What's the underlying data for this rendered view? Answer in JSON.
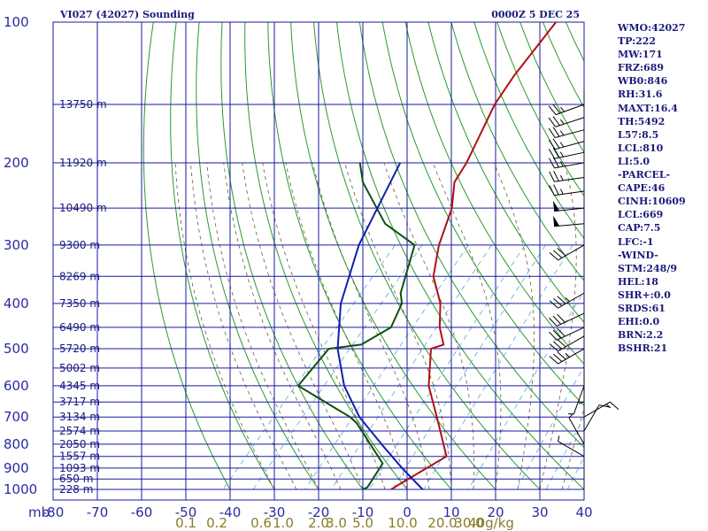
{
  "header": {
    "title": "VI027 (42027) Sounding",
    "valid_time": "0000Z  5 DEC 25"
  },
  "indices": [
    "WMO:42027",
    "TP:222",
    "MW:171",
    "FRZ:689",
    "WB0:846",
    "RH:31.6",
    "MAXT:16.4",
    "TH:5492",
    "L57:8.5",
    "LCL:810",
    "LI:5.0",
    "-PARCEL-",
    "CAPE:46",
    "CINH:10609",
    "LCL:669",
    "CAP:7.5",
    "LFC:-1",
    "-WIND-",
    "STM:248/9",
    "HEL:18",
    "SHR+:0.0",
    "SRDS:61",
    "EHI:0.0",
    "BRN:2.2",
    "BSHR:21"
  ],
  "colors": {
    "grid": "#1a1aa0",
    "dry_adiabat": "#2a9a2a",
    "moist_adiabat": "#6a5a3a",
    "mixing_ratio": "#5aa8d8",
    "temperature": "#b01010",
    "dewpoint": "#105010",
    "parcel": "#1020b0",
    "pressure_text": "#2a2aa0",
    "height_text": "#1a1a7a",
    "mix_text": "#8a7a2a",
    "wind": "#000000"
  },
  "chart_data": {
    "type": "line",
    "diagram": "skew-T log-P",
    "xlabel": "",
    "ylabel": "",
    "corner_label": "mb",
    "temperature_ticks": [
      -80,
      -70,
      -60,
      -50,
      -40,
      -30,
      -20,
      -10,
      0,
      10,
      20,
      30,
      40
    ],
    "temperature_tick_labels": [
      "-80",
      "-70",
      "-60",
      "-50",
      "-40",
      "-30",
      "-20",
      "-10",
      "0",
      "10",
      "20",
      "30",
      "40"
    ],
    "xlim_at_1000mb": [
      -80,
      40
    ],
    "pressure_ticks": [
      100,
      200,
      300,
      400,
      500,
      600,
      700,
      800,
      900,
      1000
    ],
    "ylim_mb": [
      1000,
      100
    ],
    "y_scale": "log",
    "height_labels": [
      {
        "p": 150,
        "text": "13750 m"
      },
      {
        "p": 200,
        "text": "11920 m"
      },
      {
        "p": 250,
        "text": "10490 m"
      },
      {
        "p": 300,
        "text": "9300 m"
      },
      {
        "p": 350,
        "text": "8269 m"
      },
      {
        "p": 400,
        "text": "7350 m"
      },
      {
        "p": 450,
        "text": "6490 m"
      },
      {
        "p": 500,
        "text": "5720 m"
      },
      {
        "p": 550,
        "text": "5002 m"
      },
      {
        "p": 600,
        "text": "4345 m"
      },
      {
        "p": 650,
        "text": "3717 m"
      },
      {
        "p": 700,
        "text": "3134 m"
      },
      {
        "p": 750,
        "text": "2574 m"
      },
      {
        "p": 800,
        "text": "2050 m"
      },
      {
        "p": 850,
        "text": "1557 m"
      },
      {
        "p": 900,
        "text": "1093 m"
      },
      {
        "p": 950,
        "text": "650 m"
      },
      {
        "p": 1000,
        "text": "228 m"
      }
    ],
    "mixing_ratio_labels": [
      {
        "text": "0.1",
        "t": -50
      },
      {
        "text": "0.2",
        "t": -43
      },
      {
        "text": "0.6",
        "t": -33
      },
      {
        "text": "1.0",
        "t": -28
      },
      {
        "text": "2.0",
        "t": -20
      },
      {
        "text": "3.0",
        "t": -16
      },
      {
        "text": "5.0",
        "t": -10
      },
      {
        "text": "10.0",
        "t": -1
      },
      {
        "text": "20.0",
        "t": 8
      },
      {
        "text": "30.0",
        "t": 14
      },
      {
        "text": "40g/kg",
        "t": 19
      }
    ],
    "series": [
      {
        "key": "temperature",
        "points": [
          [
            1000,
            -3.6
          ],
          [
            970,
            -2.6
          ],
          [
            850,
            2.2
          ],
          [
            800,
            -1.0
          ],
          [
            700,
            -8.0
          ],
          [
            600,
            -16.2
          ],
          [
            500,
            -23.2
          ],
          [
            490,
            -21.2
          ],
          [
            450,
            -25.6
          ],
          [
            400,
            -30.3
          ],
          [
            350,
            -37.4
          ],
          [
            300,
            -42.5
          ],
          [
            250,
            -47.1
          ],
          [
            220,
            -51.8
          ],
          [
            200,
            -53.0
          ],
          [
            150,
            -58.5
          ],
          [
            130,
            -60.0
          ],
          [
            100,
            -61.4
          ]
        ]
      },
      {
        "key": "dewpoint",
        "points": [
          [
            1000,
            -10.0
          ],
          [
            990,
            -9.4
          ],
          [
            965,
            -9.7
          ],
          [
            880,
            -10.8
          ],
          [
            720,
            -25.0
          ],
          [
            700,
            -27.6
          ],
          [
            600,
            -45.7
          ],
          [
            500,
            -46.3
          ],
          [
            490,
            -39.8
          ],
          [
            450,
            -36.6
          ],
          [
            400,
            -39.0
          ],
          [
            380,
            -41.4
          ],
          [
            300,
            -48.0
          ],
          [
            270,
            -59.0
          ],
          [
            220,
            -72.5
          ],
          [
            200,
            -77.1
          ]
        ]
      },
      {
        "key": "parcel",
        "points": [
          [
            1000,
            3.5
          ],
          [
            900,
            -5.5
          ],
          [
            810,
            -14.0
          ],
          [
            700,
            -25.5
          ],
          [
            600,
            -35.3
          ],
          [
            500,
            -44.3
          ],
          [
            400,
            -52.8
          ],
          [
            300,
            -60.6
          ],
          [
            200,
            -68.0
          ]
        ]
      }
    ],
    "wind_barbs": [
      {
        "p": 150,
        "dir": 250,
        "spd": 25
      },
      {
        "p": 160,
        "dir": 252,
        "spd": 25
      },
      {
        "p": 170,
        "dir": 255,
        "spd": 25
      },
      {
        "p": 180,
        "dir": 255,
        "spd": 25
      },
      {
        "p": 190,
        "dir": 258,
        "spd": 25
      },
      {
        "p": 200,
        "dir": 260,
        "spd": 25
      },
      {
        "p": 215,
        "dir": 262,
        "spd": 25
      },
      {
        "p": 230,
        "dir": 262,
        "spd": 25
      },
      {
        "p": 250,
        "dir": 264,
        "spd": 50
      },
      {
        "p": 270,
        "dir": 265,
        "spd": 50
      },
      {
        "p": 300,
        "dir": 240,
        "spd": 30
      },
      {
        "p": 380,
        "dir": 240,
        "spd": 35
      },
      {
        "p": 420,
        "dir": 245,
        "spd": 30
      },
      {
        "p": 450,
        "dir": 245,
        "spd": 30
      },
      {
        "p": 470,
        "dir": 240,
        "spd": 30
      },
      {
        "p": 500,
        "dir": 240,
        "spd": 35
      },
      {
        "p": 560,
        "dir": 180,
        "spd": 5
      },
      {
        "p": 600,
        "dir": 200,
        "spd": 5
      },
      {
        "p": 700,
        "dir": 60,
        "spd": 15
      },
      {
        "p": 750,
        "dir": 30,
        "spd": 10
      },
      {
        "p": 800,
        "dir": 330,
        "spd": 5
      },
      {
        "p": 850,
        "dir": 300,
        "spd": 5
      }
    ]
  }
}
